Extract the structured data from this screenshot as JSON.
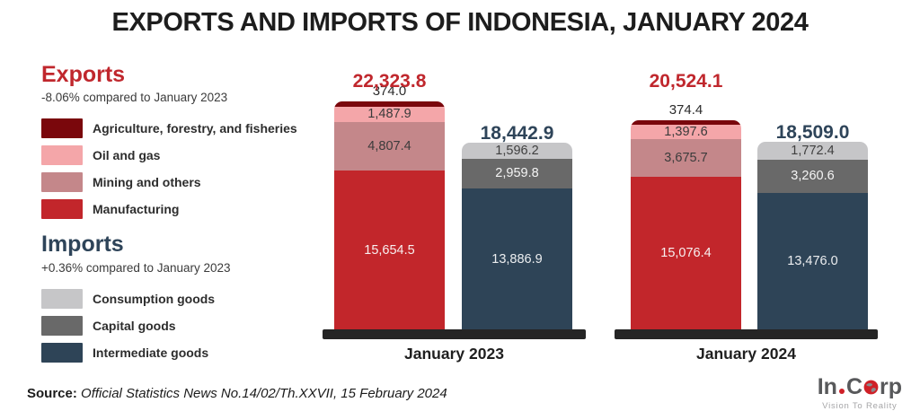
{
  "title": "EXPORTS AND IMPORTS OF INDONESIA, JANUARY 2024",
  "colors": {
    "export_accent": "#c0272d",
    "import_accent": "#2e4459",
    "axis_base": "#252525",
    "title_text": "#1d1d1d"
  },
  "legend": {
    "exports": {
      "heading": "Exports",
      "subtitle": "-8.06% compared to January 2023",
      "items": [
        {
          "label": "Agriculture, forestry, and fisheries",
          "color": "#7a070c"
        },
        {
          "label": "Oil and gas",
          "color": "#f4a6a9"
        },
        {
          "label": "Mining and others",
          "color": "#c4878a"
        },
        {
          "label": "Manufacturing",
          "color": "#c2262b"
        }
      ]
    },
    "imports": {
      "heading": "Imports",
      "subtitle": "+0.36% compared to January 2023",
      "items": [
        {
          "label": "Consumption goods",
          "color": "#c6c6c8"
        },
        {
          "label": "Capital goods",
          "color": "#696969"
        },
        {
          "label": "Intermediate goods",
          "color": "#2e4457"
        }
      ]
    }
  },
  "chart_data": {
    "type": "bar",
    "stacked": true,
    "unit": "million USD",
    "categories": [
      "January 2023",
      "January 2024"
    ],
    "groups": [
      {
        "category": "January 2023",
        "bars": [
          {
            "name": "exports",
            "total": 22323.8,
            "total_label": "22,323.8",
            "total_color": "#c0272d",
            "segments": [
              {
                "name": "Agriculture, forestry, and fisheries",
                "value": 374.0,
                "label": "374.0",
                "color": "#7a070c",
                "label_outside": true
              },
              {
                "name": "Oil and gas",
                "value": 1487.9,
                "label": "1,487.9",
                "color": "#f4a6a9",
                "text_color": "#3b3b3b"
              },
              {
                "name": "Mining and others",
                "value": 4807.4,
                "label": "4,807.4",
                "color": "#c4878a",
                "text_color": "#3b3b3b"
              },
              {
                "name": "Manufacturing",
                "value": 15654.5,
                "label": "15,654.5",
                "color": "#c2262b",
                "text_color": "#f8f0f0"
              }
            ]
          },
          {
            "name": "imports",
            "total": 18442.9,
            "total_label": "18,442.9",
            "total_color": "#2e4459",
            "segments": [
              {
                "name": "Consumption goods",
                "value": 1596.2,
                "label": "1,596.2",
                "color": "#c6c6c8",
                "text_color": "#404040"
              },
              {
                "name": "Capital goods",
                "value": 2959.8,
                "label": "2,959.8",
                "color": "#696969",
                "text_color": "#f5f5f5"
              },
              {
                "name": "Intermediate goods",
                "value": 13886.9,
                "label": "13,886.9",
                "color": "#2e4457",
                "text_color": "#eceef0"
              }
            ]
          }
        ]
      },
      {
        "category": "January 2024",
        "bars": [
          {
            "name": "exports",
            "total": 20524.1,
            "total_label": "20,524.1",
            "total_color": "#c0272d",
            "segments": [
              {
                "name": "Agriculture, forestry, and fisheries",
                "value": 374.4,
                "label": "374.4",
                "color": "#7a070c",
                "label_outside": true
              },
              {
                "name": "Oil and gas",
                "value": 1397.6,
                "label": "1,397.6",
                "color": "#f4a6a9",
                "text_color": "#3b3b3b"
              },
              {
                "name": "Mining and others",
                "value": 3675.7,
                "label": "3,675.7",
                "color": "#c4878a",
                "text_color": "#3b3b3b"
              },
              {
                "name": "Manufacturing",
                "value": 15076.4,
                "label": "15,076.4",
                "color": "#c2262b",
                "text_color": "#f8f0f0"
              }
            ]
          },
          {
            "name": "imports",
            "total": 18509.0,
            "total_label": "18,509.0",
            "total_color": "#2e4459",
            "segments": [
              {
                "name": "Consumption goods",
                "value": 1772.4,
                "label": "1,772.4",
                "color": "#c6c6c8",
                "text_color": "#404040"
              },
              {
                "name": "Capital goods",
                "value": 3260.6,
                "label": "3,260.6",
                "color": "#696969",
                "text_color": "#f5f5f5"
              },
              {
                "name": "Intermediate goods",
                "value": 13476.0,
                "label": "13,476.0",
                "color": "#2e4457",
                "text_color": "#eceef0"
              }
            ]
          }
        ]
      }
    ]
  },
  "source": {
    "prefix": "Source:",
    "text": "Official Statistics News No.14/02/Th.XXVII, 15 February 2024"
  },
  "logo": {
    "part1": "In",
    "part2": "C",
    "part3": "rp",
    "tagline": "Vision To Reality"
  }
}
